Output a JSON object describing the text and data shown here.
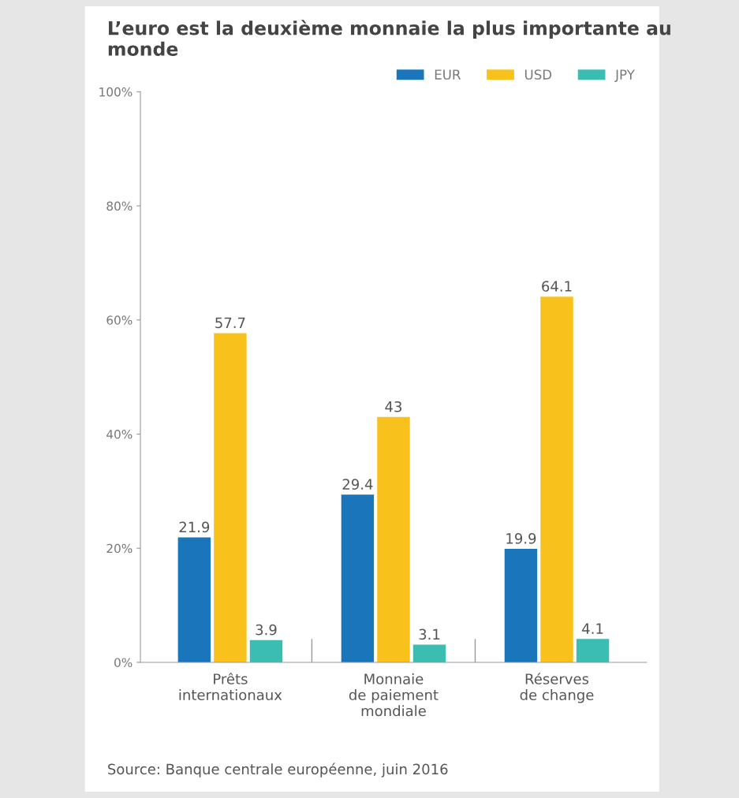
{
  "chart_data": {
    "type": "bar",
    "title": "L’euro est la deuxième monnaie la plus importante au monde",
    "categories": [
      "Prêts\ninternationaux",
      "Monnaie\nde paiement\nmondiale",
      "Réserves\nde change"
    ],
    "series": [
      {
        "name": "EUR",
        "color": "#1a75bb",
        "values": [
          21.9,
          29.4,
          19.9
        ]
      },
      {
        "name": "USD",
        "color": "#f9c11c",
        "values": [
          57.7,
          43,
          64.1
        ]
      },
      {
        "name": "JPY",
        "color": "#3bbdb2",
        "values": [
          3.9,
          3.1,
          4.1
        ]
      }
    ],
    "ylim": [
      0,
      100
    ],
    "yticks": [
      {
        "value": 0,
        "label": "0%"
      },
      {
        "value": 20,
        "label": "20%"
      },
      {
        "value": 40,
        "label": "40%"
      },
      {
        "value": 60,
        "label": "60%"
      },
      {
        "value": 80,
        "label": "80%"
      },
      {
        "value": 100,
        "label": "100%"
      }
    ],
    "data_labels": true,
    "legend": "top right",
    "grid": false,
    "annotations": [
      "Source: Banque centrale européenne, juin 2016"
    ]
  }
}
